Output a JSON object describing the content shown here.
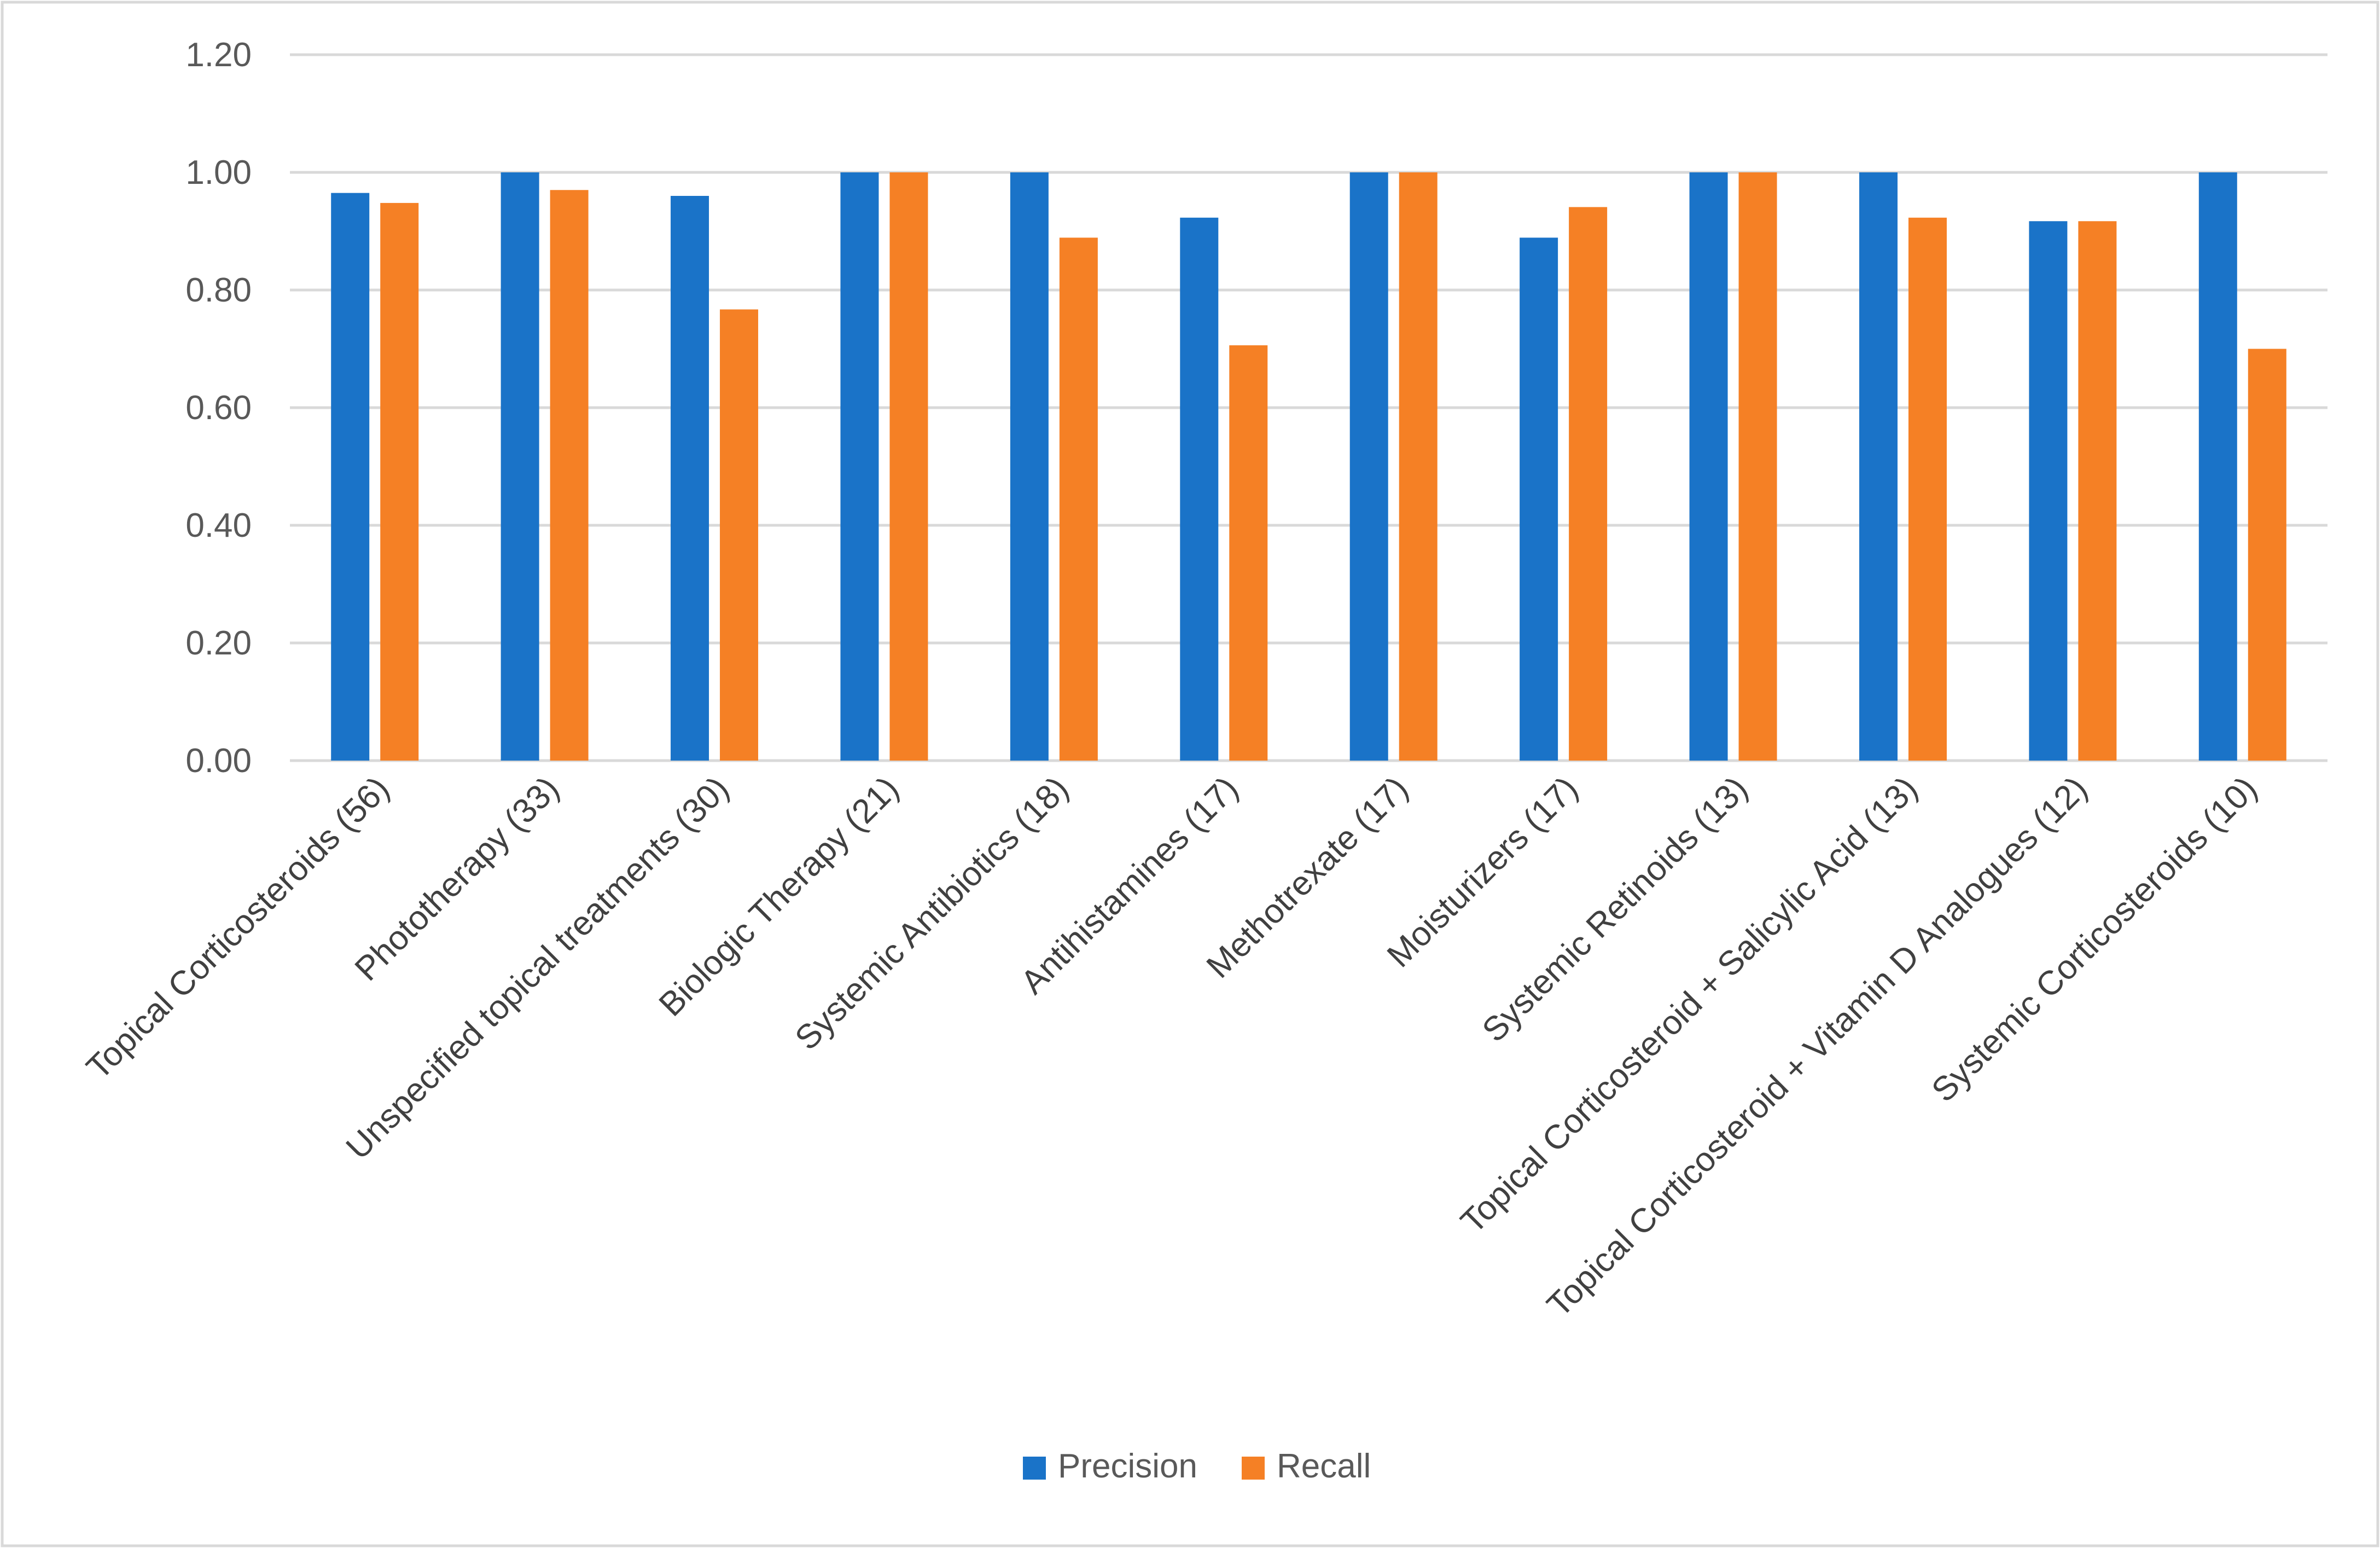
{
  "chart_data": {
    "type": "bar",
    "title": "",
    "xlabel": "",
    "ylabel": "",
    "ylim": [
      0,
      1.2
    ],
    "yticks": [
      0,
      0.2,
      0.4,
      0.6,
      0.8,
      1.0,
      1.2
    ],
    "ytick_labels": [
      "0.00",
      "0.20",
      "0.40",
      "0.60",
      "0.80",
      "1.00",
      "1.20"
    ],
    "grid": true,
    "legend_position": "bottom-center",
    "categories": [
      "Topical Corticosteroids  (56)",
      "Phototherapy (33)",
      "Unspecified topical treatments (30)",
      "Biologic Therapy (21)",
      "Systemic Antibiotics (18)",
      "Antihistamines (17)",
      "Methotrexate  (17)",
      "Moisturizers (17)",
      "Systemic Retinoids (13)",
      "Topical Corticosteroid + Salicylic Acid (13)",
      "Topical Corticosteroid + Vitamin D Analogues (12)",
      "Systemic Corticosteroids (10)"
    ],
    "series": [
      {
        "name": "Precision",
        "color": "#1a73c8",
        "values": [
          0.965,
          1.0,
          0.96,
          1.0,
          1.0,
          0.923,
          1.0,
          0.889,
          1.0,
          1.0,
          0.917,
          1.0
        ]
      },
      {
        "name": "Recall",
        "color": "#f58025",
        "values": [
          0.948,
          0.97,
          0.767,
          1.0,
          0.889,
          0.706,
          1.0,
          0.941,
          1.0,
          0.923,
          0.917,
          0.7
        ]
      }
    ]
  }
}
